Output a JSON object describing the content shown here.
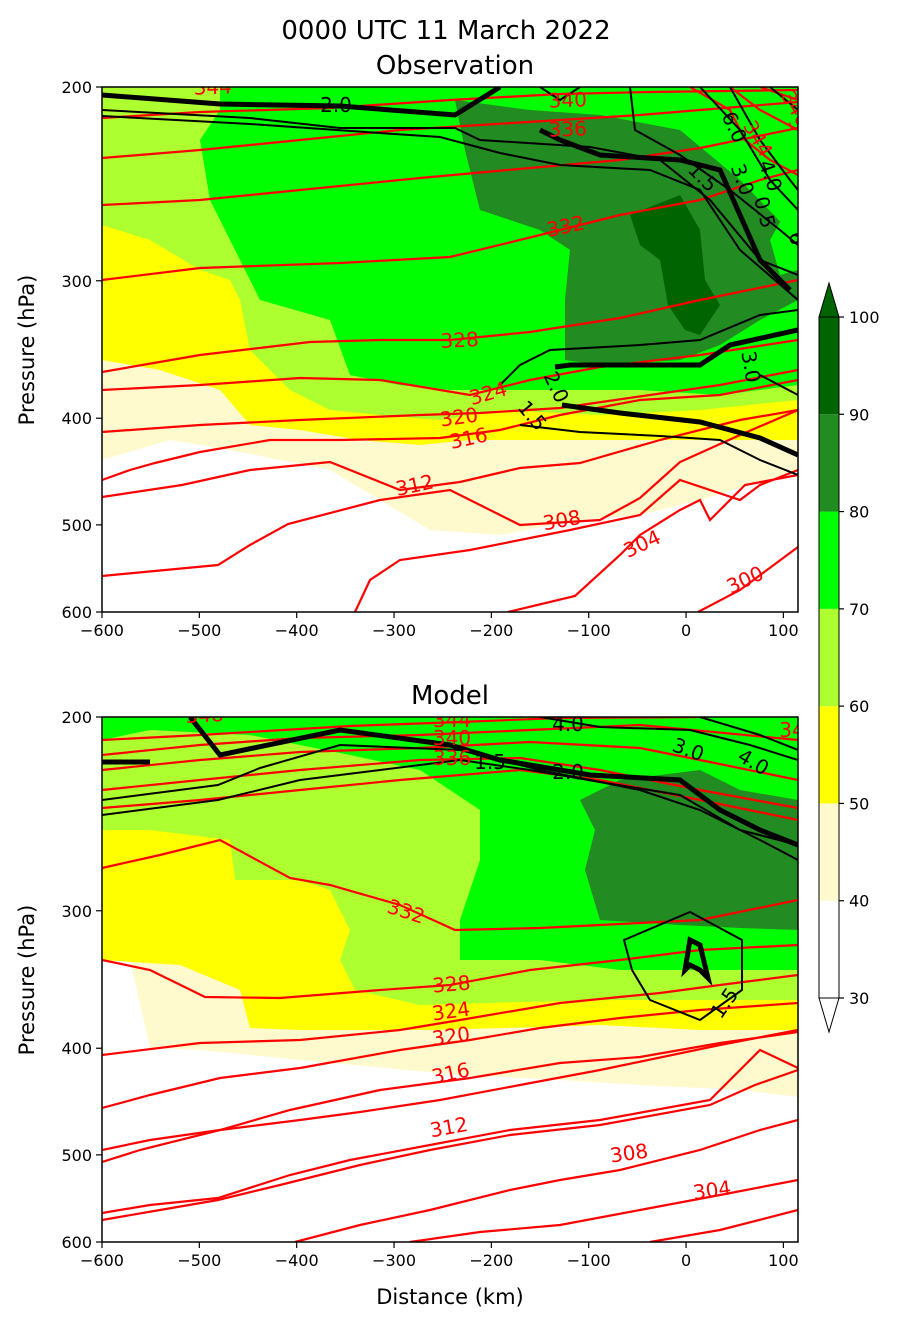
{
  "figure": {
    "title_line1": "0000 UTC 11 March 2022",
    "title_line2": "Observation"
  },
  "chart_data": [
    {
      "type": "contour",
      "title": "Observation",
      "xlabel": "",
      "ylabel": "Pressure (hPa)",
      "xlim": [
        -600,
        115
      ],
      "ylim": [
        600,
        200
      ],
      "y_scale": "log",
      "x_ticks": [
        -600,
        -500,
        -400,
        -300,
        -200,
        -100,
        0,
        100
      ],
      "y_ticks": [
        200,
        300,
        400,
        500,
        600
      ],
      "fill_levels": [
        30,
        40,
        50,
        60,
        70,
        80,
        90,
        100
      ],
      "theta_contour_labels": [
        {
          "text": "344",
          "x": -448,
          "y": 200
        },
        {
          "text": "340",
          "x": -120,
          "y": 210
        },
        {
          "text": "336",
          "x": -115,
          "y": 228
        },
        {
          "text": "332",
          "x": -120,
          "y": 268
        },
        {
          "text": "328",
          "x": -235,
          "y": 352
        },
        {
          "text": "324",
          "x": -195,
          "y": 387
        },
        {
          "text": "320",
          "x": -225,
          "y": 405
        },
        {
          "text": "316",
          "x": -220,
          "y": 427
        },
        {
          "text": "312",
          "x": -270,
          "y": 470
        },
        {
          "text": "308",
          "x": -120,
          "y": 508
        },
        {
          "text": "304",
          "x": -40,
          "y": 545
        },
        {
          "text": "300",
          "x": 65,
          "y": 580
        },
        {
          "text": "344",
          "x": 60,
          "y": 236
        },
        {
          "text": "340",
          "x": 100,
          "y": 214
        },
        {
          "text": "34",
          "x": 108,
          "y": 230
        }
      ],
      "pv_contour_labels": [
        {
          "text": "2.0",
          "x": -350,
          "y": 209
        },
        {
          "text": "1.5",
          "x": 0,
          "y": 250
        },
        {
          "text": "3.0",
          "x": 50,
          "y": 250
        },
        {
          "text": "4.0",
          "x": 75,
          "y": 248
        },
        {
          "text": "6.0",
          "x": 40,
          "y": 230
        },
        {
          "text": "0.5",
          "x": 70,
          "y": 262
        },
        {
          "text": "3.0",
          "x": 60,
          "y": 362
        },
        {
          "text": "2.0",
          "x": -135,
          "y": 387
        },
        {
          "text": "1.5",
          "x": -155,
          "y": 410
        },
        {
          "text": "6",
          "x": 105,
          "y": 270
        }
      ]
    },
    {
      "type": "contour",
      "title": "Model",
      "xlabel": "Distance (km)",
      "ylabel": "Pressure (hPa)",
      "xlim": [
        -600,
        115
      ],
      "ylim": [
        600,
        200
      ],
      "y_scale": "log",
      "x_ticks": [
        -600,
        -500,
        -400,
        -300,
        -200,
        -100,
        0,
        100
      ],
      "y_ticks": [
        200,
        300,
        400,
        500,
        600
      ],
      "fill_levels": [
        30,
        40,
        50,
        60,
        70,
        80,
        90,
        100
      ],
      "theta_contour_labels": [
        {
          "text": "348",
          "x": -480,
          "y": 202
        },
        {
          "text": "344",
          "x": -235,
          "y": 205
        },
        {
          "text": "340",
          "x": -235,
          "y": 218
        },
        {
          "text": "336",
          "x": -235,
          "y": 230
        },
        {
          "text": "332",
          "x": -285,
          "y": 297
        },
        {
          "text": "328",
          "x": -235,
          "y": 367
        },
        {
          "text": "324",
          "x": -235,
          "y": 385
        },
        {
          "text": "320",
          "x": -235,
          "y": 403
        },
        {
          "text": "316",
          "x": -235,
          "y": 430
        },
        {
          "text": "312",
          "x": -235,
          "y": 483
        },
        {
          "text": "308",
          "x": -55,
          "y": 520
        },
        {
          "text": "304",
          "x": 28,
          "y": 560
        },
        {
          "text": "34",
          "x": 110,
          "y": 209
        }
      ],
      "pv_contour_labels": [
        {
          "text": "4.0",
          "x": -120,
          "y": 206
        },
        {
          "text": "1.5",
          "x": -195,
          "y": 228
        },
        {
          "text": "2.0",
          "x": -118,
          "y": 233
        },
        {
          "text": "3.0",
          "x": 0,
          "y": 226
        },
        {
          "text": "4.0",
          "x": 55,
          "y": 232
        },
        {
          "text": "1.5",
          "x": 45,
          "y": 375
        }
      ]
    }
  ],
  "colorbar": {
    "levels": [
      30,
      40,
      50,
      60,
      70,
      80,
      90,
      100
    ],
    "tick_labels": [
      "30",
      "40",
      "50",
      "60",
      "70",
      "80",
      "90",
      "100"
    ],
    "colors": [
      "#fffacd",
      "#ffff00",
      "#adff2f",
      "#00ff00",
      "#228b22",
      "#006400"
    ],
    "extend": "both"
  },
  "colors": {
    "rh_40_50": "#fffacd",
    "rh_50_60": "#ffff00",
    "rh_60_70": "#adff2f",
    "rh_70_80": "#00ff00",
    "rh_80_90": "#228b22",
    "rh_90_100": "#006400",
    "theta_contour": "#ff0000",
    "pv_contour": "#000000"
  }
}
